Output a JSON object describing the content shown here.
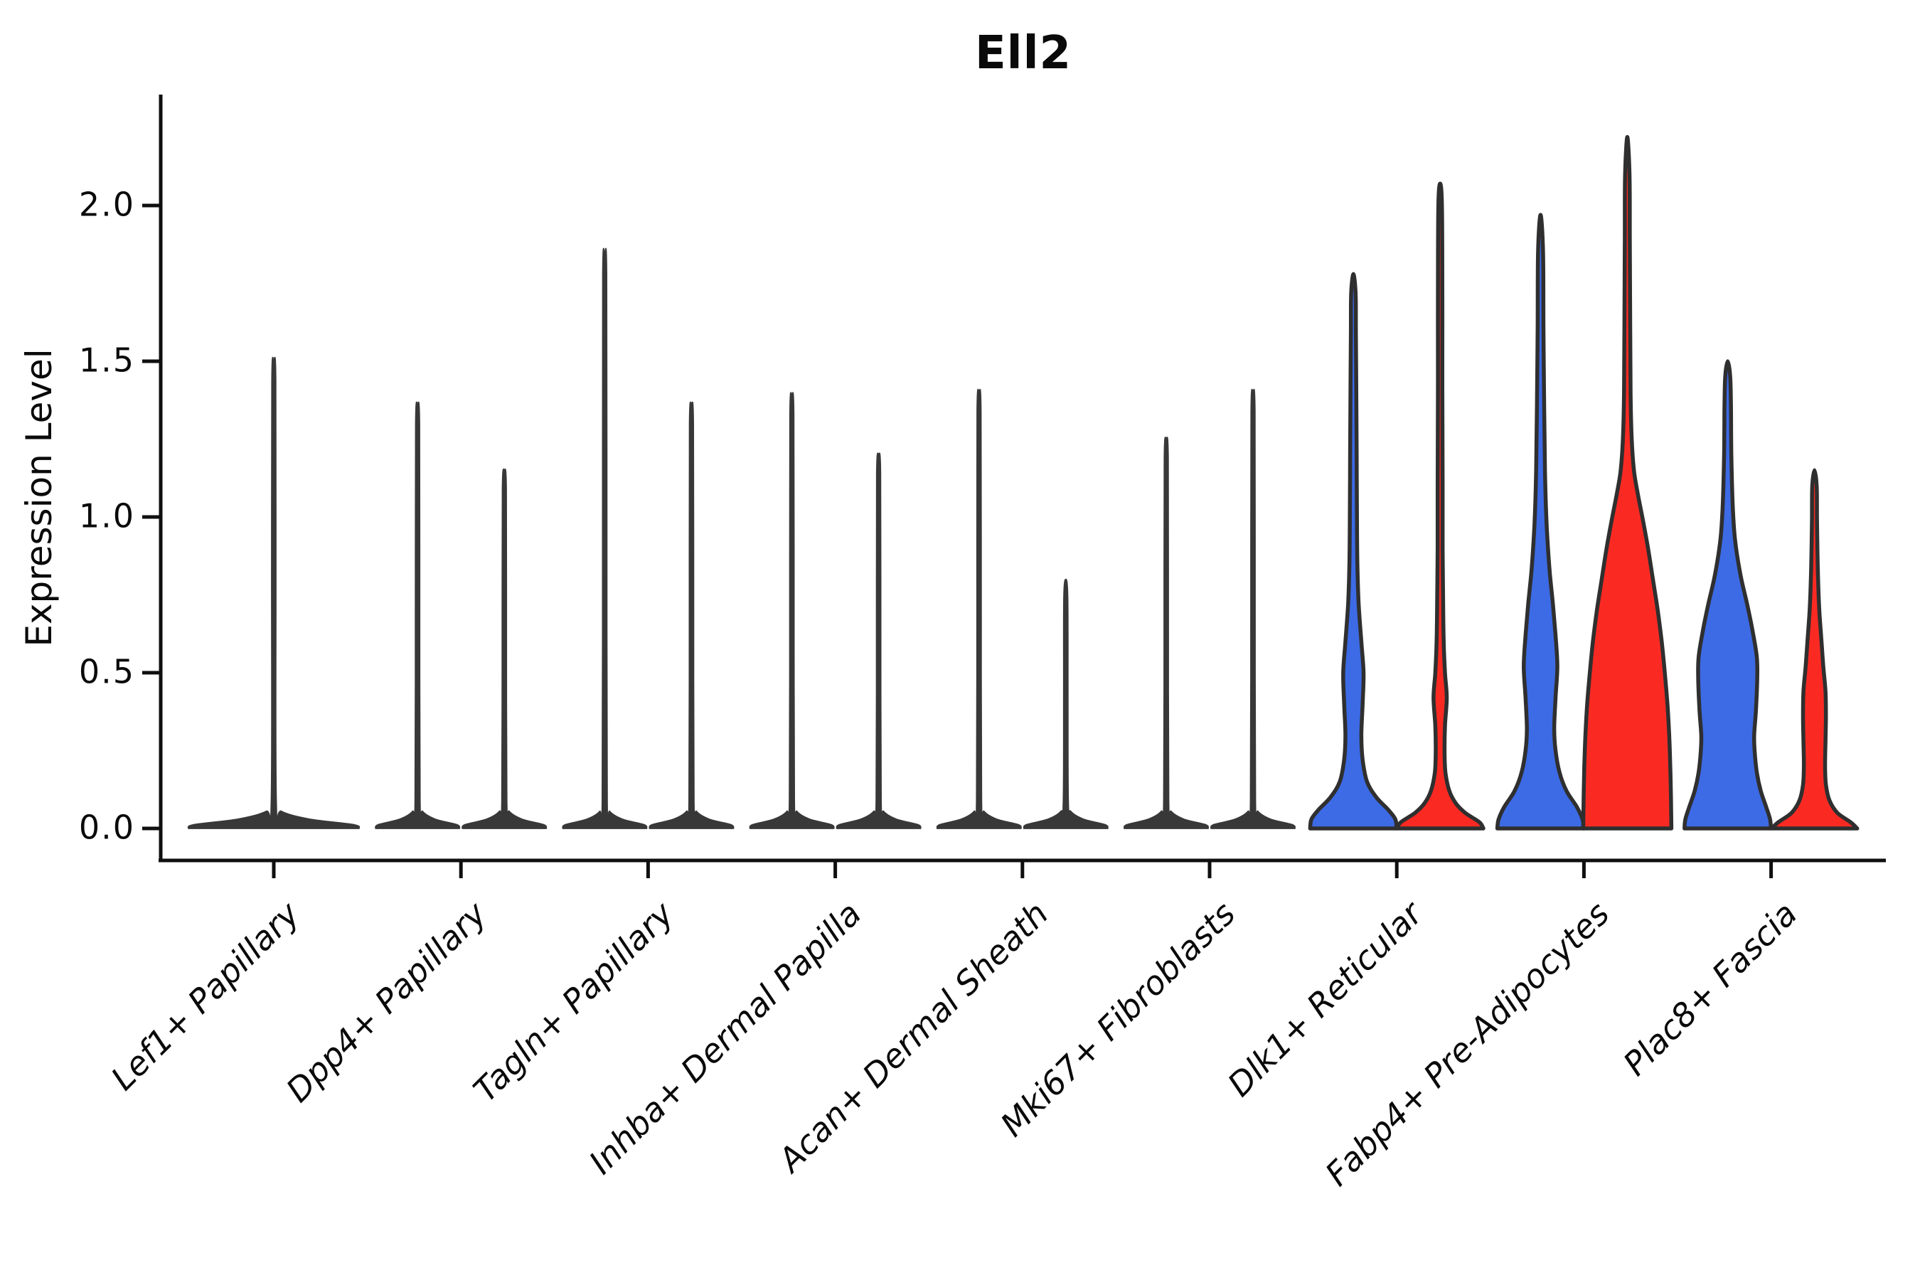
{
  "figure": {
    "title": "Ell2",
    "ylabel": "Expression Level",
    "background": "#ffffff"
  },
  "axis": {
    "ytick_labels": [
      "0.0",
      "0.5",
      "1.0",
      "1.5",
      "2.0"
    ],
    "spine_color": "#0f0f0f",
    "text_color": "#0a0a0a"
  },
  "colors": {
    "blue": "#3D6BE5",
    "red": "#FA2A23",
    "neutral": "#383838",
    "outline": "#2F2F2F"
  },
  "chart_data": {
    "type": "violin",
    "title": "Ell2",
    "xlabel": "",
    "ylabel": "Expression Level",
    "ylim": [
      0,
      2.35
    ],
    "yticks": [
      0,
      0.5,
      1,
      1.5,
      2
    ],
    "grid": false,
    "legend": false,
    "split": {
      "left_color_key": "blue",
      "right_color_key": "red"
    },
    "categories": [
      "Lef1+ Papillary",
      "Dpp4+ Papillary",
      "Tagln+ Papillary",
      "Inhba+ Dermal Papilla",
      "Acan+ Dermal Sheath",
      "Mki67+ Fibroblasts",
      "Dlk1+ Reticular",
      "Fabp4+ Pre-Adipocytes",
      "Plac8+ Fascia"
    ],
    "groups": [
      {
        "label": "Lef1+ Papillary",
        "violins": [
          {
            "side": "center",
            "color_key": "neutral",
            "style": "spike",
            "max": 1.5,
            "base_width": 240
          }
        ]
      },
      {
        "label": "Dpp4+ Papillary",
        "violins": [
          {
            "side": "left",
            "color_key": "neutral",
            "style": "spike",
            "max": 1.36,
            "base_width": 118
          },
          {
            "side": "right",
            "color_key": "neutral",
            "style": "spike",
            "max": 1.15,
            "base_width": 118
          }
        ]
      },
      {
        "label": "Tagln+ Papillary",
        "violins": [
          {
            "side": "left",
            "color_key": "neutral",
            "style": "spike",
            "max": 1.84,
            "base_width": 118
          },
          {
            "side": "right",
            "color_key": "neutral",
            "style": "spike",
            "max": 1.36,
            "base_width": 118
          }
        ]
      },
      {
        "label": "Inhba+ Dermal Papilla",
        "violins": [
          {
            "side": "left",
            "color_key": "neutral",
            "style": "spike",
            "max": 1.39,
            "base_width": 118
          },
          {
            "side": "right",
            "color_key": "neutral",
            "style": "spike",
            "max": 1.2,
            "base_width": 118
          }
        ]
      },
      {
        "label": "Acan+ Dermal Sheath",
        "violins": [
          {
            "side": "left",
            "color_key": "neutral",
            "style": "spike",
            "max": 1.4,
            "base_width": 118
          },
          {
            "side": "right",
            "color_key": "neutral",
            "style": "spike",
            "max": 0.8,
            "base_width": 118
          }
        ]
      },
      {
        "label": "Mki67+ Fibroblasts",
        "violins": [
          {
            "side": "left",
            "color_key": "neutral",
            "style": "spike",
            "max": 1.25,
            "base_width": 118
          },
          {
            "side": "right",
            "color_key": "neutral",
            "style": "spike",
            "max": 1.4,
            "base_width": 118
          }
        ]
      },
      {
        "label": "Dlk1+ Reticular",
        "violins": [
          {
            "side": "left",
            "color_key": "blue",
            "style": "density",
            "max": 1.78,
            "profile": [
              [
                0,
                0.98
              ],
              [
                0.03,
                0.95
              ],
              [
                0.06,
                0.79
              ],
              [
                0.1,
                0.52
              ],
              [
                0.15,
                0.31
              ],
              [
                0.22,
                0.21
              ],
              [
                0.3,
                0.18
              ],
              [
                0.4,
                0.21
              ],
              [
                0.5,
                0.23
              ],
              [
                0.6,
                0.18
              ],
              [
                0.72,
                0.12
              ],
              [
                0.85,
                0.09
              ],
              [
                1.0,
                0.08
              ],
              [
                1.2,
                0.074
              ],
              [
                1.4,
                0.066
              ],
              [
                1.6,
                0.057
              ],
              [
                1.72,
                0.05
              ],
              [
                1.78,
                0
              ]
            ]
          },
          {
            "side": "right",
            "color_key": "red",
            "style": "density",
            "max": 2.07,
            "profile": [
              [
                0,
                0.98
              ],
              [
                0.02,
                0.89
              ],
              [
                0.05,
                0.57
              ],
              [
                0.08,
                0.36
              ],
              [
                0.12,
                0.21
              ],
              [
                0.18,
                0.12
              ],
              [
                0.25,
                0.1
              ],
              [
                0.33,
                0.11
              ],
              [
                0.42,
                0.15
              ],
              [
                0.5,
                0.11
              ],
              [
                0.6,
                0.08
              ],
              [
                0.75,
                0.066
              ],
              [
                0.9,
                0.057
              ],
              [
                1.1,
                0.057
              ],
              [
                1.4,
                0.05
              ],
              [
                1.7,
                0.05
              ],
              [
                2.0,
                0.041
              ],
              [
                2.07,
                0
              ]
            ]
          }
        ]
      },
      {
        "label": "Fabp4+ Pre-Adipocytes",
        "violins": [
          {
            "side": "left",
            "color_key": "blue",
            "style": "density",
            "max": 1.97,
            "profile": [
              [
                0,
                0.98
              ],
              [
                0.03,
                0.95
              ],
              [
                0.07,
                0.82
              ],
              [
                0.12,
                0.59
              ],
              [
                0.18,
                0.43
              ],
              [
                0.25,
                0.34
              ],
              [
                0.32,
                0.31
              ],
              [
                0.42,
                0.34
              ],
              [
                0.52,
                0.38
              ],
              [
                0.62,
                0.34
              ],
              [
                0.72,
                0.28
              ],
              [
                0.82,
                0.21
              ],
              [
                0.92,
                0.16
              ],
              [
                1.0,
                0.13
              ],
              [
                1.15,
                0.1
              ],
              [
                1.35,
                0.082
              ],
              [
                1.6,
                0.066
              ],
              [
                1.85,
                0.057
              ],
              [
                1.97,
                0
              ]
            ]
          },
          {
            "side": "right",
            "color_key": "red",
            "style": "density",
            "max": 2.22,
            "profile": [
              [
                0,
                1.0
              ],
              [
                0.1,
                0.99
              ],
              [
                0.2,
                0.975
              ],
              [
                0.3,
                0.95
              ],
              [
                0.4,
                0.91
              ],
              [
                0.5,
                0.85
              ],
              [
                0.6,
                0.78
              ],
              [
                0.7,
                0.69
              ],
              [
                0.8,
                0.58
              ],
              [
                0.9,
                0.47
              ],
              [
                1.0,
                0.34
              ],
              [
                1.08,
                0.23
              ],
              [
                1.15,
                0.15
              ],
              [
                1.25,
                0.1
              ],
              [
                1.4,
                0.074
              ],
              [
                1.6,
                0.066
              ],
              [
                1.9,
                0.057
              ],
              [
                2.1,
                0.05
              ],
              [
                2.22,
                0
              ]
            ]
          }
        ]
      },
      {
        "label": "Plac8+ Fascia",
        "violins": [
          {
            "side": "left",
            "color_key": "blue",
            "style": "density",
            "max": 1.5,
            "profile": [
              [
                0,
                0.98
              ],
              [
                0.03,
                0.96
              ],
              [
                0.07,
                0.87
              ],
              [
                0.12,
                0.75
              ],
              [
                0.18,
                0.66
              ],
              [
                0.25,
                0.61
              ],
              [
                0.3,
                0.6
              ],
              [
                0.38,
                0.64
              ],
              [
                0.48,
                0.67
              ],
              [
                0.55,
                0.66
              ],
              [
                0.63,
                0.57
              ],
              [
                0.72,
                0.44
              ],
              [
                0.8,
                0.31
              ],
              [
                0.88,
                0.21
              ],
              [
                0.95,
                0.15
              ],
              [
                1.05,
                0.11
              ],
              [
                1.2,
                0.082
              ],
              [
                1.35,
                0.074
              ],
              [
                1.45,
                0.057
              ],
              [
                1.5,
                0
              ]
            ]
          },
          {
            "side": "right",
            "color_key": "red",
            "style": "density",
            "max": 1.15,
            "profile": [
              [
                0,
                0.97
              ],
              [
                0.02,
                0.82
              ],
              [
                0.05,
                0.52
              ],
              [
                0.09,
                0.34
              ],
              [
                0.14,
                0.26
              ],
              [
                0.2,
                0.24
              ],
              [
                0.28,
                0.25
              ],
              [
                0.36,
                0.26
              ],
              [
                0.44,
                0.25
              ],
              [
                0.52,
                0.2
              ],
              [
                0.6,
                0.16
              ],
              [
                0.7,
                0.11
              ],
              [
                0.8,
                0.082
              ],
              [
                0.9,
                0.066
              ],
              [
                1.0,
                0.057
              ],
              [
                1.1,
                0.05
              ],
              [
                1.15,
                0
              ]
            ]
          }
        ]
      }
    ]
  }
}
